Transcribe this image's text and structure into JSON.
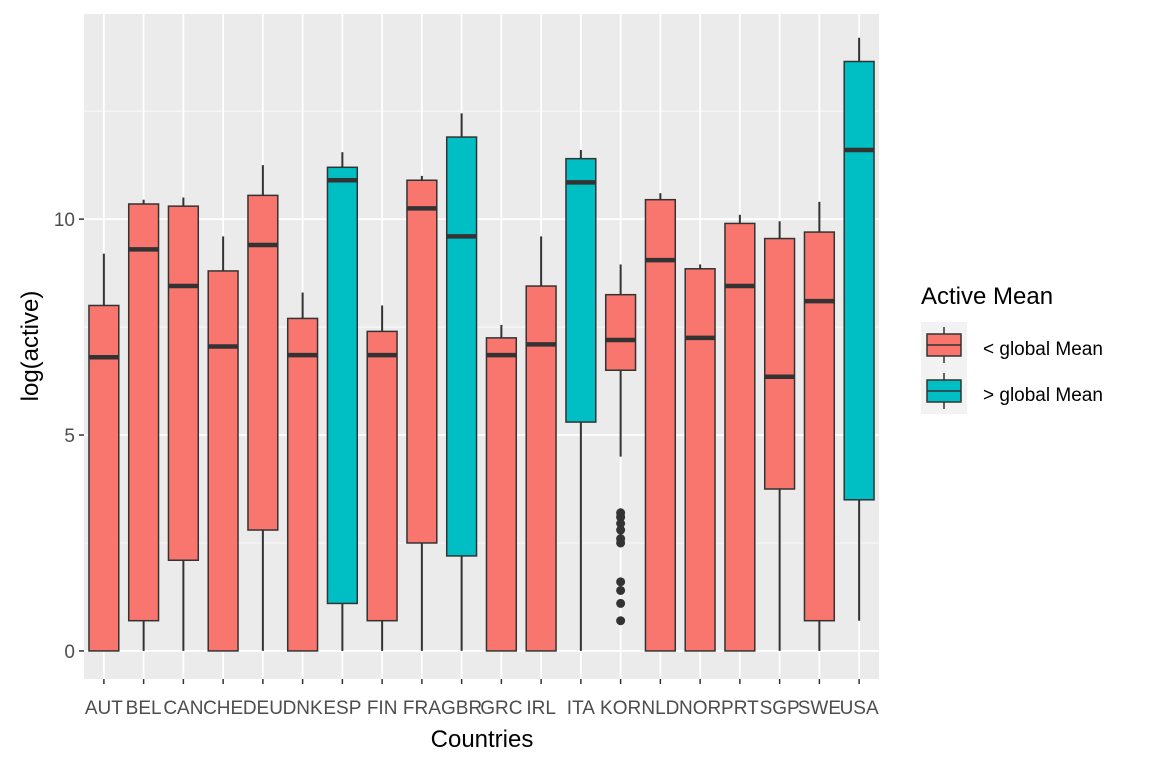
{
  "chart_data": {
    "type": "boxplot",
    "xlabel": "Countries",
    "ylabel": "log(active)",
    "ylim": [
      -0.65,
      14.75
    ],
    "y_ticks": [
      0,
      5,
      10
    ],
    "grid": true,
    "legend": {
      "title": "Active Mean",
      "placement": "right",
      "entries": [
        {
          "label": "< global Mean",
          "color": "#F8766D"
        },
        {
          "label": "> global Mean",
          "color": "#00BFC4"
        }
      ]
    },
    "categories": [
      "AUT",
      "BEL",
      "CAN",
      "CHE",
      "DEU",
      "DNK",
      "ESP",
      "FIN",
      "FRA",
      "GBR",
      "GRC",
      "IRL",
      "ITA",
      "KOR",
      "NLD",
      "NOR",
      "PRT",
      "SGP",
      "SWE",
      "USA"
    ],
    "boxes": [
      {
        "category": "AUT",
        "group": "< global Mean",
        "whisker_low": 0.0,
        "q1": 0.0,
        "median": 6.8,
        "q3": 8.0,
        "whisker_high": 9.2,
        "outliers": []
      },
      {
        "category": "BEL",
        "group": "< global Mean",
        "whisker_low": 0.0,
        "q1": 0.7,
        "median": 9.3,
        "q3": 10.35,
        "whisker_high": 10.45,
        "outliers": []
      },
      {
        "category": "CAN",
        "group": "< global Mean",
        "whisker_low": 0.0,
        "q1": 2.1,
        "median": 8.45,
        "q3": 10.3,
        "whisker_high": 10.5,
        "outliers": []
      },
      {
        "category": "CHE",
        "group": "< global Mean",
        "whisker_low": 0.0,
        "q1": 0.0,
        "median": 7.05,
        "q3": 8.8,
        "whisker_high": 9.6,
        "outliers": []
      },
      {
        "category": "DEU",
        "group": "< global Mean",
        "whisker_low": 0.0,
        "q1": 2.8,
        "median": 9.4,
        "q3": 10.55,
        "whisker_high": 11.25,
        "outliers": []
      },
      {
        "category": "DNK",
        "group": "< global Mean",
        "whisker_low": 0.0,
        "q1": 0.0,
        "median": 6.85,
        "q3": 7.7,
        "whisker_high": 8.3,
        "outliers": []
      },
      {
        "category": "ESP",
        "group": "> global Mean",
        "whisker_low": 0.0,
        "q1": 1.1,
        "median": 10.9,
        "q3": 11.2,
        "whisker_high": 11.55,
        "outliers": []
      },
      {
        "category": "FIN",
        "group": "< global Mean",
        "whisker_low": 0.0,
        "q1": 0.7,
        "median": 6.85,
        "q3": 7.4,
        "whisker_high": 8.0,
        "outliers": []
      },
      {
        "category": "FRA",
        "group": "< global Mean",
        "whisker_low": 0.0,
        "q1": 2.5,
        "median": 10.25,
        "q3": 10.9,
        "whisker_high": 11.0,
        "outliers": []
      },
      {
        "category": "GBR",
        "group": "> global Mean",
        "whisker_low": 0.0,
        "q1": 2.2,
        "median": 9.6,
        "q3": 11.9,
        "whisker_high": 12.45,
        "outliers": []
      },
      {
        "category": "GRC",
        "group": "< global Mean",
        "whisker_low": 0.0,
        "q1": 0.0,
        "median": 6.85,
        "q3": 7.25,
        "whisker_high": 7.55,
        "outliers": []
      },
      {
        "category": "IRL",
        "group": "< global Mean",
        "whisker_low": 0.0,
        "q1": 0.0,
        "median": 7.1,
        "q3": 8.45,
        "whisker_high": 9.6,
        "outliers": []
      },
      {
        "category": "ITA",
        "group": "> global Mean",
        "whisker_low": 0.0,
        "q1": 5.3,
        "median": 10.85,
        "q3": 11.4,
        "whisker_high": 11.6,
        "outliers": []
      },
      {
        "category": "KOR",
        "group": "< global Mean",
        "whisker_low": 4.5,
        "q1": 6.5,
        "median": 7.2,
        "q3": 8.25,
        "whisker_high": 8.95,
        "outliers": [
          3.2,
          3.1,
          2.95,
          2.8,
          2.6,
          2.5,
          1.6,
          1.4,
          1.1,
          0.7
        ]
      },
      {
        "category": "NLD",
        "group": "< global Mean",
        "whisker_low": 0.0,
        "q1": 0.0,
        "median": 9.05,
        "q3": 10.45,
        "whisker_high": 10.6,
        "outliers": []
      },
      {
        "category": "NOR",
        "group": "< global Mean",
        "whisker_low": 0.0,
        "q1": 0.0,
        "median": 7.25,
        "q3": 8.85,
        "whisker_high": 8.95,
        "outliers": []
      },
      {
        "category": "PRT",
        "group": "< global Mean",
        "whisker_low": 0.0,
        "q1": 0.0,
        "median": 8.45,
        "q3": 9.9,
        "whisker_high": 10.1,
        "outliers": []
      },
      {
        "category": "SGP",
        "group": "< global Mean",
        "whisker_low": 0.0,
        "q1": 3.75,
        "median": 6.35,
        "q3": 9.55,
        "whisker_high": 9.95,
        "outliers": []
      },
      {
        "category": "SWE",
        "group": "< global Mean",
        "whisker_low": 0.0,
        "q1": 0.7,
        "median": 8.1,
        "q3": 9.7,
        "whisker_high": 10.4,
        "outliers": []
      },
      {
        "category": "USA",
        "group": "> global Mean",
        "whisker_low": 0.7,
        "q1": 3.5,
        "median": 11.6,
        "q3": 13.65,
        "whisker_high": 14.2,
        "outliers": []
      }
    ]
  }
}
